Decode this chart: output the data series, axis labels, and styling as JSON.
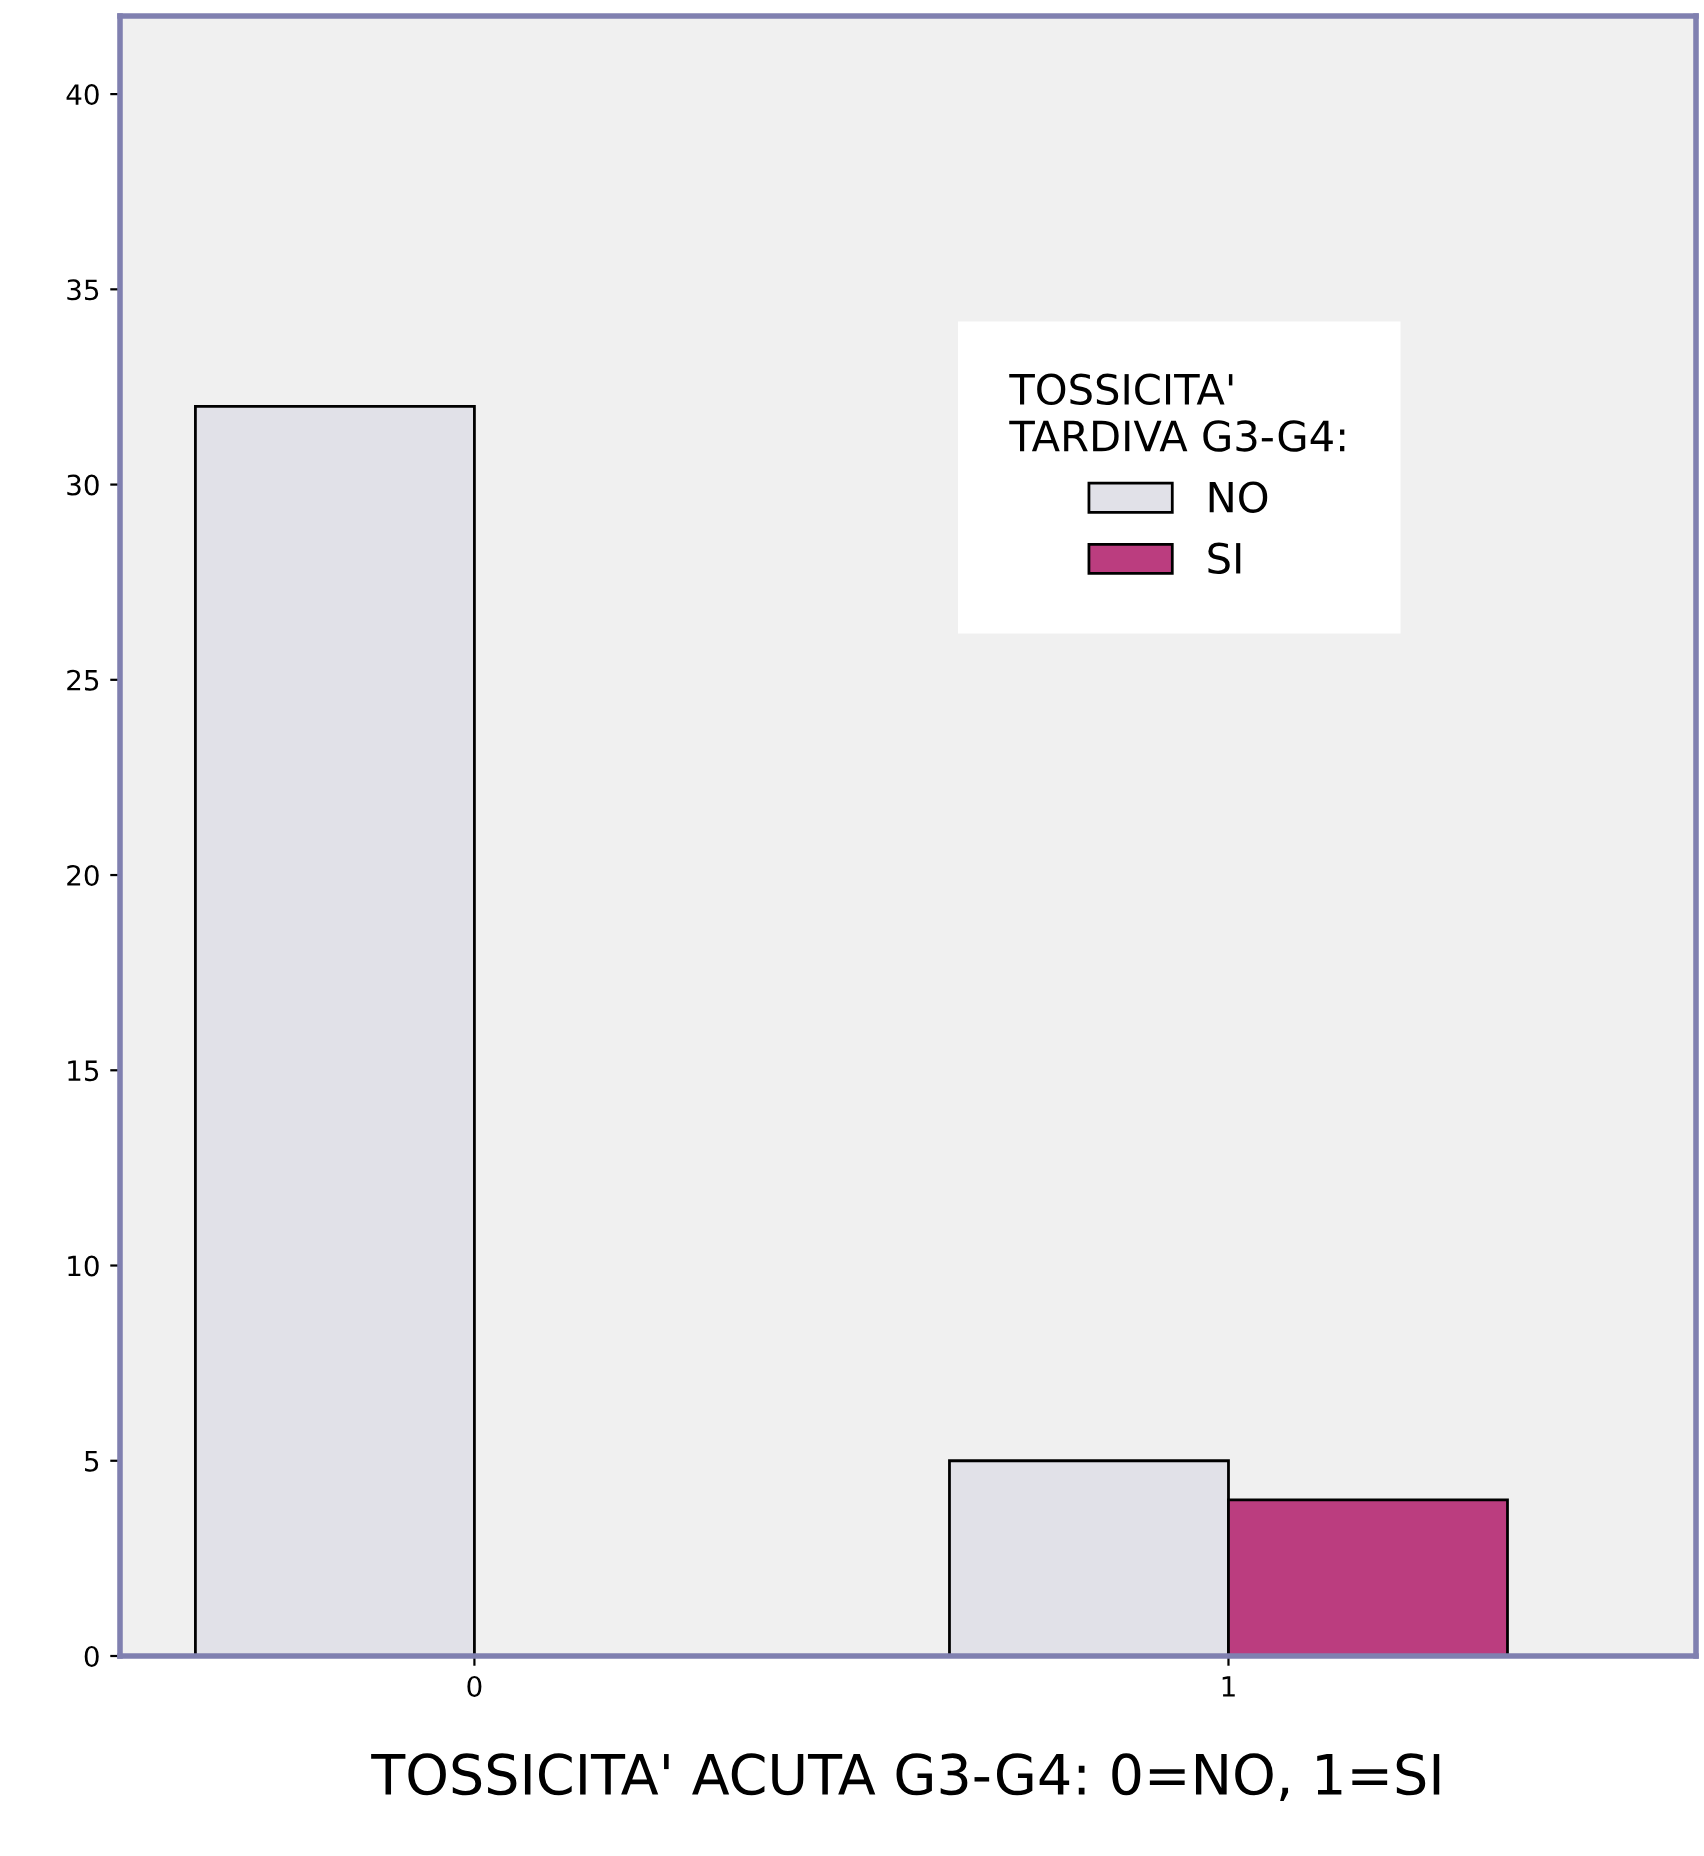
{
  "chart_data": {
    "type": "bar",
    "xlabel": "TOSSICITA' ACUTA G3-G4: 0=NO, 1=SI",
    "legend_title": "TOSSICITA'\nTARDIVA G3-G4:",
    "categories": [
      "0",
      "1"
    ],
    "series": [
      {
        "name": "NO",
        "color": "#e1e1e8",
        "values": [
          32,
          5
        ]
      },
      {
        "name": "SI",
        "color": "#bb3d7f",
        "values": [
          null,
          4
        ]
      }
    ],
    "ylim": [
      0,
      42
    ],
    "yticks": [
      0,
      5,
      10,
      15,
      20,
      25,
      30,
      35,
      40
    ],
    "grid": false,
    "legend": "top right"
  }
}
